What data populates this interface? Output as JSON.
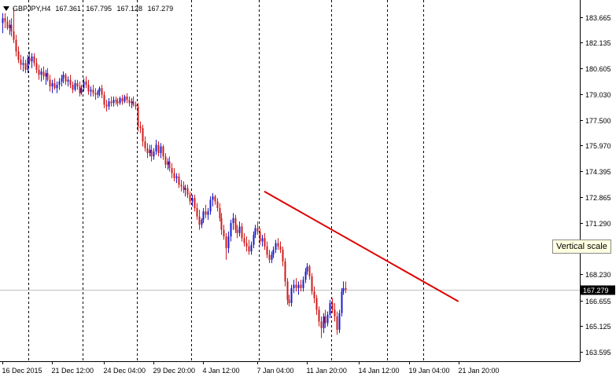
{
  "header": {
    "symbol": "GBPJPY,H4",
    "ohlc": [
      "167.361",
      "167.795",
      "167.128",
      "167.279"
    ]
  },
  "tooltip": "Vertical scale",
  "colors": {
    "background": "#ffffff",
    "axis": "#000000",
    "bull_candle": "#1a1acc",
    "bear_candle": "#d11a1a",
    "trendline": "#e00000",
    "period_separator": "#000000",
    "price_line": "#c0c0c0",
    "price_label_bg": "#000000",
    "price_label_text": "#ffffff"
  },
  "chart_data": {
    "type": "candlestick",
    "symbol": "GBPJPY",
    "timeframe": "H4",
    "ylim": [
      163.2,
      184.5
    ],
    "y_ticks": [
      "183.665",
      "182.135",
      "180.605",
      "179.030",
      "177.500",
      "175.970",
      "174.395",
      "172.865",
      "171.290",
      "169.760",
      "168.230",
      "166.655",
      "165.125",
      "163.595"
    ],
    "current_price": "167.279",
    "x_ticks": [
      "16 Dec 2015",
      "21 Dec 12:00",
      "24 Dec 04:00",
      "29 Dec 20:00",
      "4 Jan 12:00",
      "7 Jan 04:00",
      "11 Jan 20:00",
      "14 Jan 12:00",
      "19 Jan 04:00",
      "21 Jan 20:00"
    ],
    "period_separators_after_bar": [
      11,
      35,
      59,
      83,
      113,
      145,
      170,
      186
    ],
    "candles": [
      {
        "o": 183.3,
        "h": 183.9,
        "l": 182.7,
        "c": 183.6
      },
      {
        "o": 183.6,
        "h": 183.9,
        "l": 183.0,
        "c": 183.4
      },
      {
        "o": 183.4,
        "h": 183.7,
        "l": 182.9,
        "c": 183.0
      },
      {
        "o": 183.0,
        "h": 183.5,
        "l": 182.6,
        "c": 183.2
      },
      {
        "o": 183.2,
        "h": 183.6,
        "l": 182.5,
        "c": 182.8
      },
      {
        "o": 182.8,
        "h": 184.2,
        "l": 182.1,
        "c": 182.3
      },
      {
        "o": 182.3,
        "h": 182.6,
        "l": 181.3,
        "c": 181.6
      },
      {
        "o": 181.6,
        "h": 181.9,
        "l": 180.9,
        "c": 181.1
      },
      {
        "o": 181.1,
        "h": 181.4,
        "l": 180.5,
        "c": 180.8
      },
      {
        "o": 180.8,
        "h": 181.3,
        "l": 180.4,
        "c": 180.9
      },
      {
        "o": 180.9,
        "h": 181.1,
        "l": 180.3,
        "c": 180.5
      },
      {
        "o": 180.5,
        "h": 181.4,
        "l": 180.3,
        "c": 181.2
      },
      {
        "o": 181.2,
        "h": 181.6,
        "l": 180.8,
        "c": 181.0
      },
      {
        "o": 181.0,
        "h": 181.5,
        "l": 180.6,
        "c": 181.3
      },
      {
        "o": 181.3,
        "h": 181.5,
        "l": 180.7,
        "c": 180.9
      },
      {
        "o": 180.9,
        "h": 181.2,
        "l": 180.3,
        "c": 180.5
      },
      {
        "o": 180.5,
        "h": 180.8,
        "l": 179.9,
        "c": 180.2
      },
      {
        "o": 180.2,
        "h": 180.6,
        "l": 179.8,
        "c": 180.4
      },
      {
        "o": 180.4,
        "h": 180.7,
        "l": 179.9,
        "c": 180.1
      },
      {
        "o": 180.1,
        "h": 180.5,
        "l": 179.6,
        "c": 180.3
      },
      {
        "o": 180.3,
        "h": 180.6,
        "l": 179.8,
        "c": 179.9
      },
      {
        "o": 179.9,
        "h": 180.2,
        "l": 179.2,
        "c": 179.5
      },
      {
        "o": 179.5,
        "h": 179.9,
        "l": 179.1,
        "c": 179.7
      },
      {
        "o": 179.7,
        "h": 180.0,
        "l": 179.3,
        "c": 179.4
      },
      {
        "o": 179.4,
        "h": 179.8,
        "l": 179.1,
        "c": 179.6
      },
      {
        "o": 179.6,
        "h": 180.0,
        "l": 179.3,
        "c": 179.8
      },
      {
        "o": 179.8,
        "h": 180.2,
        "l": 179.5,
        "c": 180.0
      },
      {
        "o": 180.0,
        "h": 180.4,
        "l": 179.7,
        "c": 180.2
      },
      {
        "o": 180.2,
        "h": 180.3,
        "l": 179.6,
        "c": 179.8
      },
      {
        "o": 179.8,
        "h": 180.1,
        "l": 179.5,
        "c": 179.9
      },
      {
        "o": 179.9,
        "h": 180.2,
        "l": 179.4,
        "c": 179.6
      },
      {
        "o": 179.6,
        "h": 179.8,
        "l": 179.1,
        "c": 179.3
      },
      {
        "o": 179.3,
        "h": 179.9,
        "l": 179.2,
        "c": 179.7
      },
      {
        "o": 179.7,
        "h": 179.9,
        "l": 179.3,
        "c": 179.5
      },
      {
        "o": 179.5,
        "h": 179.8,
        "l": 178.9,
        "c": 179.1
      },
      {
        "o": 179.1,
        "h": 179.6,
        "l": 179.0,
        "c": 179.4
      },
      {
        "o": 179.4,
        "h": 180.0,
        "l": 179.2,
        "c": 179.8
      },
      {
        "o": 179.8,
        "h": 180.1,
        "l": 179.4,
        "c": 179.6
      },
      {
        "o": 179.6,
        "h": 179.9,
        "l": 179.0,
        "c": 179.2
      },
      {
        "o": 179.2,
        "h": 179.5,
        "l": 178.9,
        "c": 179.3
      },
      {
        "o": 179.3,
        "h": 179.6,
        "l": 178.9,
        "c": 179.1
      },
      {
        "o": 179.1,
        "h": 179.4,
        "l": 178.7,
        "c": 179.0
      },
      {
        "o": 179.0,
        "h": 179.3,
        "l": 178.8,
        "c": 179.2
      },
      {
        "o": 179.2,
        "h": 179.5,
        "l": 178.9,
        "c": 179.4
      },
      {
        "o": 179.4,
        "h": 179.6,
        "l": 178.8,
        "c": 179.0
      },
      {
        "o": 179.0,
        "h": 179.2,
        "l": 178.2,
        "c": 178.4
      },
      {
        "o": 178.4,
        "h": 178.7,
        "l": 178.0,
        "c": 178.3
      },
      {
        "o": 178.3,
        "h": 178.8,
        "l": 178.1,
        "c": 178.6
      },
      {
        "o": 178.6,
        "h": 178.9,
        "l": 178.3,
        "c": 178.5
      },
      {
        "o": 178.5,
        "h": 178.9,
        "l": 178.3,
        "c": 178.7
      },
      {
        "o": 178.7,
        "h": 178.9,
        "l": 178.4,
        "c": 178.6
      },
      {
        "o": 178.6,
        "h": 178.8,
        "l": 178.3,
        "c": 178.5
      },
      {
        "o": 178.5,
        "h": 178.9,
        "l": 178.4,
        "c": 178.8
      },
      {
        "o": 178.8,
        "h": 179.0,
        "l": 178.4,
        "c": 178.6
      },
      {
        "o": 178.6,
        "h": 179.0,
        "l": 178.5,
        "c": 178.9
      },
      {
        "o": 178.9,
        "h": 179.1,
        "l": 178.5,
        "c": 178.7
      },
      {
        "o": 178.7,
        "h": 178.9,
        "l": 178.3,
        "c": 178.5
      },
      {
        "o": 178.5,
        "h": 178.8,
        "l": 178.2,
        "c": 178.6
      },
      {
        "o": 178.6,
        "h": 178.9,
        "l": 178.3,
        "c": 178.4
      },
      {
        "o": 178.4,
        "h": 178.6,
        "l": 178.1,
        "c": 178.3
      },
      {
        "o": 178.3,
        "h": 178.5,
        "l": 176.8,
        "c": 177.1
      },
      {
        "o": 177.1,
        "h": 177.4,
        "l": 176.7,
        "c": 177.0
      },
      {
        "o": 177.0,
        "h": 177.2,
        "l": 175.9,
        "c": 176.2
      },
      {
        "o": 176.2,
        "h": 176.5,
        "l": 175.6,
        "c": 175.8
      },
      {
        "o": 175.8,
        "h": 176.1,
        "l": 175.2,
        "c": 175.5
      },
      {
        "o": 175.5,
        "h": 176.0,
        "l": 175.3,
        "c": 175.7
      },
      {
        "o": 175.7,
        "h": 176.0,
        "l": 175.0,
        "c": 175.3
      },
      {
        "o": 175.3,
        "h": 175.8,
        "l": 175.1,
        "c": 175.6
      },
      {
        "o": 175.6,
        "h": 176.3,
        "l": 175.4,
        "c": 176.0
      },
      {
        "o": 176.0,
        "h": 176.2,
        "l": 175.3,
        "c": 175.5
      },
      {
        "o": 175.5,
        "h": 176.1,
        "l": 175.2,
        "c": 175.9
      },
      {
        "o": 175.9,
        "h": 176.0,
        "l": 175.1,
        "c": 175.3
      },
      {
        "o": 175.3,
        "h": 175.5,
        "l": 174.6,
        "c": 174.8
      },
      {
        "o": 174.8,
        "h": 175.2,
        "l": 174.5,
        "c": 175.0
      },
      {
        "o": 175.0,
        "h": 175.3,
        "l": 174.4,
        "c": 174.6
      },
      {
        "o": 174.6,
        "h": 174.9,
        "l": 174.0,
        "c": 174.3
      },
      {
        "o": 174.3,
        "h": 174.6,
        "l": 173.8,
        "c": 174.0
      },
      {
        "o": 174.0,
        "h": 174.3,
        "l": 173.7,
        "c": 174.1
      },
      {
        "o": 174.1,
        "h": 174.3,
        "l": 173.4,
        "c": 173.6
      },
      {
        "o": 173.6,
        "h": 173.9,
        "l": 173.2,
        "c": 173.5
      },
      {
        "o": 173.5,
        "h": 173.8,
        "l": 173.1,
        "c": 173.3
      },
      {
        "o": 173.3,
        "h": 173.6,
        "l": 172.9,
        "c": 173.4
      },
      {
        "o": 173.4,
        "h": 173.6,
        "l": 172.8,
        "c": 173.0
      },
      {
        "o": 173.0,
        "h": 173.2,
        "l": 172.4,
        "c": 172.6
      },
      {
        "o": 172.6,
        "h": 173.0,
        "l": 172.3,
        "c": 172.8
      },
      {
        "o": 172.8,
        "h": 173.0,
        "l": 172.0,
        "c": 172.2
      },
      {
        "o": 172.2,
        "h": 172.5,
        "l": 171.5,
        "c": 171.7
      },
      {
        "o": 171.7,
        "h": 172.1,
        "l": 170.9,
        "c": 171.2
      },
      {
        "o": 171.2,
        "h": 171.6,
        "l": 171.0,
        "c": 171.5
      },
      {
        "o": 171.5,
        "h": 172.2,
        "l": 171.3,
        "c": 172.0
      },
      {
        "o": 172.0,
        "h": 172.4,
        "l": 171.6,
        "c": 171.8
      },
      {
        "o": 171.8,
        "h": 172.2,
        "l": 171.5,
        "c": 172.0
      },
      {
        "o": 172.0,
        "h": 172.9,
        "l": 171.8,
        "c": 172.7
      },
      {
        "o": 172.7,
        "h": 173.1,
        "l": 172.3,
        "c": 172.9
      },
      {
        "o": 172.9,
        "h": 173.0,
        "l": 172.4,
        "c": 172.6
      },
      {
        "o": 172.6,
        "h": 172.8,
        "l": 172.0,
        "c": 172.2
      },
      {
        "o": 172.2,
        "h": 172.5,
        "l": 171.4,
        "c": 171.6
      },
      {
        "o": 171.6,
        "h": 171.9,
        "l": 170.6,
        "c": 170.9
      },
      {
        "o": 170.9,
        "h": 171.2,
        "l": 170.3,
        "c": 170.5
      },
      {
        "o": 170.5,
        "h": 170.7,
        "l": 169.1,
        "c": 169.8
      },
      {
        "o": 169.8,
        "h": 170.8,
        "l": 169.5,
        "c": 170.5
      },
      {
        "o": 170.5,
        "h": 171.5,
        "l": 170.2,
        "c": 171.3
      },
      {
        "o": 171.3,
        "h": 171.9,
        "l": 170.9,
        "c": 171.6
      },
      {
        "o": 171.6,
        "h": 171.8,
        "l": 170.7,
        "c": 170.9
      },
      {
        "o": 170.9,
        "h": 171.2,
        "l": 170.4,
        "c": 170.7
      },
      {
        "o": 170.7,
        "h": 171.4,
        "l": 170.5,
        "c": 171.1
      },
      {
        "o": 171.1,
        "h": 171.3,
        "l": 170.2,
        "c": 170.4
      },
      {
        "o": 170.4,
        "h": 170.7,
        "l": 169.9,
        "c": 170.1
      },
      {
        "o": 170.1,
        "h": 170.5,
        "l": 169.6,
        "c": 169.9
      },
      {
        "o": 169.9,
        "h": 170.3,
        "l": 169.4,
        "c": 169.6
      },
      {
        "o": 169.6,
        "h": 170.2,
        "l": 169.4,
        "c": 170.0
      },
      {
        "o": 170.0,
        "h": 170.8,
        "l": 169.8,
        "c": 170.6
      },
      {
        "o": 170.6,
        "h": 171.2,
        "l": 170.4,
        "c": 171.0
      },
      {
        "o": 171.0,
        "h": 171.4,
        "l": 170.6,
        "c": 170.8
      },
      {
        "o": 170.8,
        "h": 171.0,
        "l": 170.0,
        "c": 170.2
      },
      {
        "o": 170.2,
        "h": 170.6,
        "l": 169.9,
        "c": 170.4
      },
      {
        "o": 170.4,
        "h": 170.7,
        "l": 169.7,
        "c": 169.9
      },
      {
        "o": 169.9,
        "h": 170.2,
        "l": 169.2,
        "c": 169.4
      },
      {
        "o": 169.4,
        "h": 169.7,
        "l": 168.9,
        "c": 169.1
      },
      {
        "o": 169.1,
        "h": 169.6,
        "l": 168.9,
        "c": 169.4
      },
      {
        "o": 169.4,
        "h": 169.9,
        "l": 169.2,
        "c": 169.7
      },
      {
        "o": 169.7,
        "h": 170.3,
        "l": 169.5,
        "c": 170.1
      },
      {
        "o": 170.1,
        "h": 170.4,
        "l": 169.7,
        "c": 169.9
      },
      {
        "o": 169.9,
        "h": 170.2,
        "l": 169.5,
        "c": 169.7
      },
      {
        "o": 169.7,
        "h": 169.9,
        "l": 168.7,
        "c": 169.0
      },
      {
        "o": 169.0,
        "h": 169.2,
        "l": 167.5,
        "c": 167.8
      },
      {
        "o": 167.8,
        "h": 168.0,
        "l": 166.4,
        "c": 166.7
      },
      {
        "o": 166.7,
        "h": 167.0,
        "l": 166.3,
        "c": 166.5
      },
      {
        "o": 166.5,
        "h": 167.6,
        "l": 166.3,
        "c": 167.4
      },
      {
        "o": 167.4,
        "h": 167.9,
        "l": 167.1,
        "c": 167.6
      },
      {
        "o": 167.6,
        "h": 168.0,
        "l": 167.2,
        "c": 167.4
      },
      {
        "o": 167.4,
        "h": 167.8,
        "l": 167.0,
        "c": 167.6
      },
      {
        "o": 167.6,
        "h": 167.9,
        "l": 167.2,
        "c": 167.4
      },
      {
        "o": 167.4,
        "h": 168.1,
        "l": 167.2,
        "c": 167.9
      },
      {
        "o": 167.9,
        "h": 168.6,
        "l": 167.7,
        "c": 168.4
      },
      {
        "o": 168.4,
        "h": 168.9,
        "l": 168.2,
        "c": 168.7
      },
      {
        "o": 168.7,
        "h": 168.8,
        "l": 167.9,
        "c": 168.1
      },
      {
        "o": 168.1,
        "h": 168.3,
        "l": 167.0,
        "c": 167.2
      },
      {
        "o": 167.2,
        "h": 167.5,
        "l": 166.5,
        "c": 166.8
      },
      {
        "o": 166.8,
        "h": 167.0,
        "l": 165.8,
        "c": 166.1
      },
      {
        "o": 166.1,
        "h": 166.3,
        "l": 165.1,
        "c": 165.4
      },
      {
        "o": 165.4,
        "h": 165.7,
        "l": 164.4,
        "c": 165.0
      },
      {
        "o": 165.0,
        "h": 165.9,
        "l": 164.7,
        "c": 165.7
      },
      {
        "o": 165.7,
        "h": 166.1,
        "l": 165.0,
        "c": 165.3
      },
      {
        "o": 165.3,
        "h": 166.0,
        "l": 165.1,
        "c": 165.8
      },
      {
        "o": 165.8,
        "h": 166.7,
        "l": 165.6,
        "c": 166.5
      },
      {
        "o": 166.5,
        "h": 166.8,
        "l": 165.9,
        "c": 166.1
      },
      {
        "o": 166.1,
        "h": 166.5,
        "l": 165.4,
        "c": 165.7
      },
      {
        "o": 165.7,
        "h": 166.0,
        "l": 164.6,
        "c": 164.9
      },
      {
        "o": 164.9,
        "h": 166.1,
        "l": 164.7,
        "c": 165.9
      },
      {
        "o": 165.9,
        "h": 167.4,
        "l": 165.7,
        "c": 167.2
      },
      {
        "o": 167.2,
        "h": 167.8,
        "l": 167.0,
        "c": 167.4
      },
      {
        "o": 167.4,
        "h": 167.8,
        "l": 167.1,
        "c": 167.3
      }
    ],
    "trendline": {
      "from_bar": 116,
      "from_price": 173.2,
      "to_bar": 202,
      "to_price": 166.6
    }
  }
}
